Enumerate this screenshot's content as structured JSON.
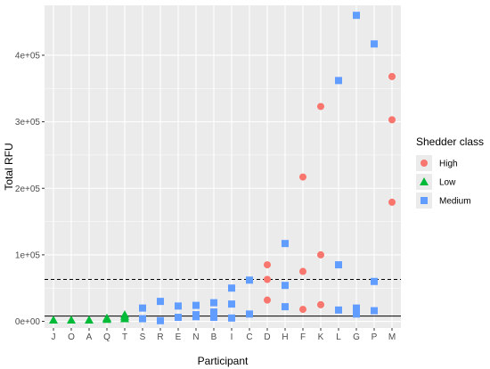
{
  "chart_data": {
    "type": "scatter",
    "xlabel": "Participant",
    "ylabel": "Total RFU",
    "categories": [
      "J",
      "O",
      "A",
      "Q",
      "T",
      "S",
      "R",
      "E",
      "N",
      "B",
      "I",
      "C",
      "D",
      "H",
      "F",
      "K",
      "L",
      "G",
      "P",
      "M"
    ],
    "ylim": [
      -10000,
      475000
    ],
    "yticks": [
      0,
      100000,
      200000,
      300000,
      400000
    ],
    "ytick_labels": [
      "0e+00",
      "1e+05",
      "2e+05",
      "3e+05",
      "4e+05"
    ],
    "grid": true,
    "reference_lines": [
      {
        "y": 63000,
        "style": "dashed"
      },
      {
        "y": 8000,
        "style": "solid"
      }
    ],
    "legend": {
      "title": "Shedder class",
      "placement": "right",
      "entries": [
        {
          "name": "High",
          "shape": "circle",
          "color": "#F8766D"
        },
        {
          "name": "Low",
          "shape": "triangle",
          "color": "#00BA38"
        },
        {
          "name": "Medium",
          "shape": "square",
          "color": "#619CFF"
        }
      ]
    },
    "series": [
      {
        "name": "High",
        "points": [
          {
            "x": "D",
            "y": 85000
          },
          {
            "x": "D",
            "y": 63000
          },
          {
            "x": "D",
            "y": 32000
          },
          {
            "x": "F",
            "y": 217000
          },
          {
            "x": "F",
            "y": 75000
          },
          {
            "x": "F",
            "y": 18000
          },
          {
            "x": "K",
            "y": 323000
          },
          {
            "x": "K",
            "y": 100000
          },
          {
            "x": "K",
            "y": 25000
          },
          {
            "x": "M",
            "y": 368000
          },
          {
            "x": "M",
            "y": 303000
          },
          {
            "x": "M",
            "y": 179000
          }
        ]
      },
      {
        "name": "Low",
        "points": [
          {
            "x": "J",
            "y": 2000
          },
          {
            "x": "O",
            "y": 2000
          },
          {
            "x": "A",
            "y": 2000
          },
          {
            "x": "Q",
            "y": 3000
          },
          {
            "x": "Q",
            "y": 5000
          },
          {
            "x": "T",
            "y": 4000
          },
          {
            "x": "T",
            "y": 7000
          },
          {
            "x": "T",
            "y": 10000
          }
        ]
      },
      {
        "name": "Medium",
        "points": [
          {
            "x": "S",
            "y": 20000
          },
          {
            "x": "S",
            "y": 4000
          },
          {
            "x": "R",
            "y": 30000
          },
          {
            "x": "R",
            "y": 1000
          },
          {
            "x": "E",
            "y": 23000
          },
          {
            "x": "E",
            "y": 6000
          },
          {
            "x": "N",
            "y": 24000
          },
          {
            "x": "N",
            "y": 10000
          },
          {
            "x": "N",
            "y": 7000
          },
          {
            "x": "B",
            "y": 28000
          },
          {
            "x": "B",
            "y": 14000
          },
          {
            "x": "B",
            "y": 6000
          },
          {
            "x": "I",
            "y": 50000
          },
          {
            "x": "I",
            "y": 26000
          },
          {
            "x": "I",
            "y": 5000
          },
          {
            "x": "C",
            "y": 62000
          },
          {
            "x": "C",
            "y": 11000
          },
          {
            "x": "H",
            "y": 117000
          },
          {
            "x": "H",
            "y": 54000
          },
          {
            "x": "H",
            "y": 22000
          },
          {
            "x": "L",
            "y": 362000
          },
          {
            "x": "L",
            "y": 85000
          },
          {
            "x": "L",
            "y": 17000
          },
          {
            "x": "G",
            "y": 460000
          },
          {
            "x": "G",
            "y": 20000
          },
          {
            "x": "G",
            "y": 11000
          },
          {
            "x": "P",
            "y": 417000
          },
          {
            "x": "P",
            "y": 60000
          },
          {
            "x": "P",
            "y": 16000
          }
        ]
      }
    ]
  }
}
